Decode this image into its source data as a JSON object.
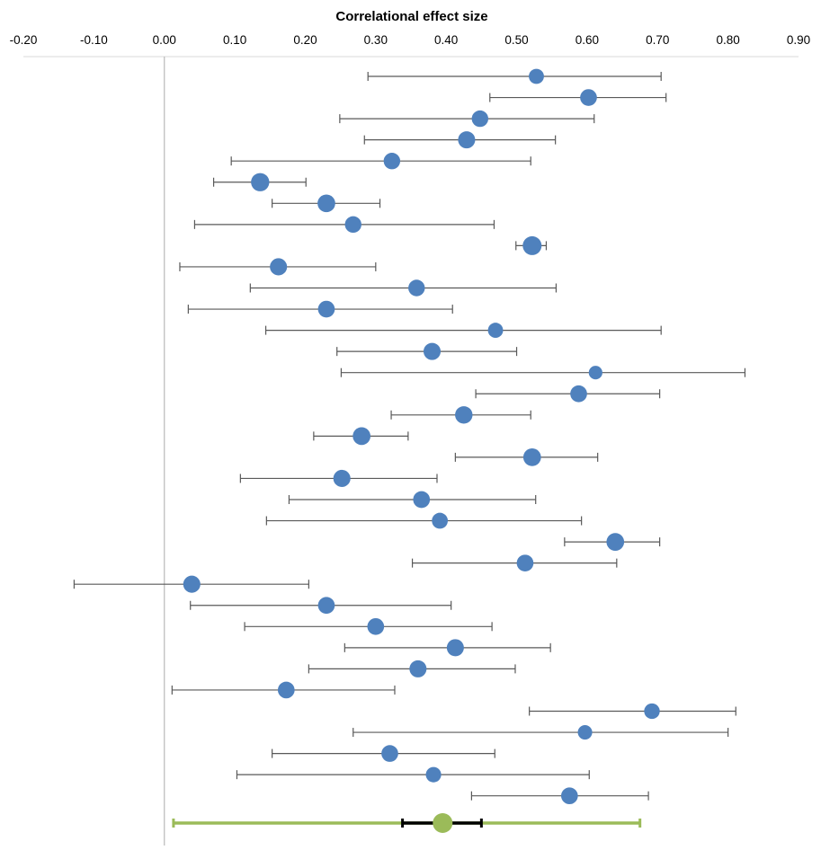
{
  "chart_data": {
    "type": "forest",
    "title": "Correlational effect size",
    "xlim": [
      -0.2,
      0.9
    ],
    "x_ticks": [
      -0.2,
      -0.1,
      0.0,
      0.1,
      0.2,
      0.3,
      0.4,
      0.5,
      0.6,
      0.7,
      0.8,
      0.9
    ],
    "x_tick_labels": [
      "-0.20",
      "-0.10",
      "0.00",
      "0.10",
      "0.20",
      "0.30",
      "0.40",
      "0.50",
      "0.60",
      "0.70",
      "0.80",
      "0.90"
    ],
    "axis_position": "top",
    "grid": false,
    "legend": "none",
    "studies": [
      {
        "estimate": 0.528,
        "lower": 0.289,
        "upper": 0.705,
        "weight": 0.68
      },
      {
        "estimate": 0.602,
        "lower": 0.462,
        "upper": 0.712,
        "weight": 0.82
      },
      {
        "estimate": 0.448,
        "lower": 0.249,
        "upper": 0.61,
        "weight": 0.8
      },
      {
        "estimate": 0.429,
        "lower": 0.284,
        "upper": 0.555,
        "weight": 0.85
      },
      {
        "estimate": 0.323,
        "lower": 0.095,
        "upper": 0.52,
        "weight": 0.8
      },
      {
        "estimate": 0.136,
        "lower": 0.07,
        "upper": 0.201,
        "weight": 0.95
      },
      {
        "estimate": 0.23,
        "lower": 0.153,
        "upper": 0.306,
        "weight": 0.9
      },
      {
        "estimate": 0.268,
        "lower": 0.043,
        "upper": 0.468,
        "weight": 0.8
      },
      {
        "estimate": 0.522,
        "lower": 0.499,
        "upper": 0.542,
        "weight": 1.0
      },
      {
        "estimate": 0.162,
        "lower": 0.022,
        "upper": 0.3,
        "weight": 0.85
      },
      {
        "estimate": 0.358,
        "lower": 0.122,
        "upper": 0.556,
        "weight": 0.8
      },
      {
        "estimate": 0.23,
        "lower": 0.034,
        "upper": 0.409,
        "weight": 0.82
      },
      {
        "estimate": 0.47,
        "lower": 0.144,
        "upper": 0.705,
        "weight": 0.68
      },
      {
        "estimate": 0.38,
        "lower": 0.245,
        "upper": 0.5,
        "weight": 0.85
      },
      {
        "estimate": 0.612,
        "lower": 0.251,
        "upper": 0.824,
        "weight": 0.55
      },
      {
        "estimate": 0.588,
        "lower": 0.442,
        "upper": 0.703,
        "weight": 0.82
      },
      {
        "estimate": 0.425,
        "lower": 0.322,
        "upper": 0.52,
        "weight": 0.88
      },
      {
        "estimate": 0.28,
        "lower": 0.212,
        "upper": 0.346,
        "weight": 0.9
      },
      {
        "estimate": 0.522,
        "lower": 0.413,
        "upper": 0.615,
        "weight": 0.9
      },
      {
        "estimate": 0.252,
        "lower": 0.108,
        "upper": 0.387,
        "weight": 0.85
      },
      {
        "estimate": 0.365,
        "lower": 0.177,
        "upper": 0.527,
        "weight": 0.82
      },
      {
        "estimate": 0.391,
        "lower": 0.145,
        "upper": 0.592,
        "weight": 0.75
      },
      {
        "estimate": 0.64,
        "lower": 0.568,
        "upper": 0.703,
        "weight": 0.9
      },
      {
        "estimate": 0.512,
        "lower": 0.352,
        "upper": 0.642,
        "weight": 0.82
      },
      {
        "estimate": 0.039,
        "lower": -0.128,
        "upper": 0.205,
        "weight": 0.85
      },
      {
        "estimate": 0.23,
        "lower": 0.037,
        "upper": 0.407,
        "weight": 0.82
      },
      {
        "estimate": 0.3,
        "lower": 0.114,
        "upper": 0.465,
        "weight": 0.82
      },
      {
        "estimate": 0.413,
        "lower": 0.256,
        "upper": 0.548,
        "weight": 0.85
      },
      {
        "estimate": 0.36,
        "lower": 0.205,
        "upper": 0.498,
        "weight": 0.85
      },
      {
        "estimate": 0.173,
        "lower": 0.011,
        "upper": 0.327,
        "weight": 0.82
      },
      {
        "estimate": 0.692,
        "lower": 0.518,
        "upper": 0.811,
        "weight": 0.72
      },
      {
        "estimate": 0.597,
        "lower": 0.268,
        "upper": 0.8,
        "weight": 0.62
      },
      {
        "estimate": 0.32,
        "lower": 0.153,
        "upper": 0.469,
        "weight": 0.82
      },
      {
        "estimate": 0.382,
        "lower": 0.103,
        "upper": 0.603,
        "weight": 0.7
      },
      {
        "estimate": 0.575,
        "lower": 0.436,
        "upper": 0.687,
        "weight": 0.82
      }
    ],
    "summary": {
      "estimate": 0.395,
      "lower": 0.338,
      "upper": 0.45,
      "prediction_lower": 0.013,
      "prediction_upper": 0.675
    },
    "colors": {
      "study_marker": "#4f81bd",
      "study_ci": "#595959",
      "summary_marker": "#9bbb59",
      "summary_prediction": "#9bbb59",
      "summary_ci": "#000000",
      "zero_line": "#bfbfbf",
      "axis_line": "#d9d9d9"
    }
  }
}
